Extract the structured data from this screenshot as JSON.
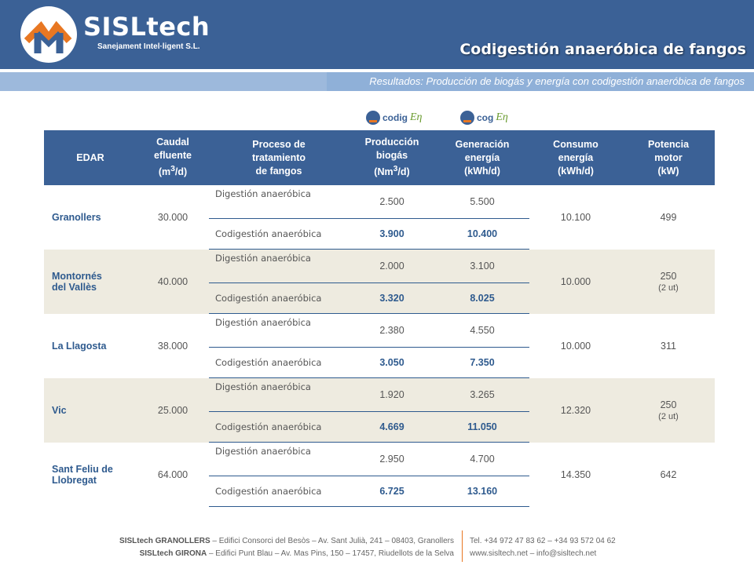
{
  "header": {
    "brand": "SISLtech",
    "brand_sub": "Sanejament Intel·ligent S.L.",
    "title": "Codigestión anaeróbica de fangos",
    "subtitle": "Resultados: Producción de biogás y energía con codigestión anaeróbica de fangos",
    "colors": {
      "primary": "#3b6196",
      "accent": "#e87722",
      "light": "#8fb0d8",
      "shade": "#eeebe0"
    }
  },
  "logos": {
    "codigen": {
      "text": "codig",
      "suffix": "Eη"
    },
    "cogen": {
      "text": "cog",
      "suffix": "Eη"
    }
  },
  "table": {
    "headers": {
      "edar": "EDAR",
      "caudal_1": "Caudal",
      "caudal_2": "efluente",
      "caudal_3": "(m",
      "proceso_1": "Proceso de",
      "proceso_2": "tratamiento",
      "proceso_3": "de fangos",
      "prod_1": "Producción",
      "prod_2": "biogás",
      "prod_3": "(Nm",
      "gen_1": "Generación",
      "gen_2": "energía",
      "gen_3": "(kWh/d)",
      "cons_1": "Consumo",
      "cons_2": "energía",
      "cons_3": "(kWh/d)",
      "pot_1": "Potencia",
      "pot_2": "motor",
      "pot_3": "(kW)"
    },
    "process_labels": {
      "digestion": "Digestión anaeróbica",
      "codigestion": "Codigestión anaeróbica"
    },
    "rows": [
      {
        "site_1": "Granollers",
        "site_2": "",
        "caudal": "30.000",
        "dig_biogas": "2.500",
        "dig_energy": "5.500",
        "codig_biogas": "3.900",
        "codig_energy": "10.400",
        "consumo": "10.100",
        "potencia": "499",
        "potencia_note": ""
      },
      {
        "site_1": "Montornés",
        "site_2": "del Vallès",
        "caudal": "40.000",
        "dig_biogas": "2.000",
        "dig_energy": "3.100",
        "codig_biogas": "3.320",
        "codig_energy": "8.025",
        "consumo": "10.000",
        "potencia": "250",
        "potencia_note": "(2 ut)"
      },
      {
        "site_1": "La Llagosta",
        "site_2": "",
        "caudal": "38.000",
        "dig_biogas": "2.380",
        "dig_energy": "4.550",
        "codig_biogas": "3.050",
        "codig_energy": "7.350",
        "consumo": "10.000",
        "potencia": "311",
        "potencia_note": ""
      },
      {
        "site_1": "Vic",
        "site_2": "",
        "caudal": "25.000",
        "dig_biogas": "1.920",
        "dig_energy": "3.265",
        "codig_biogas": "4.669",
        "codig_energy": "11.050",
        "consumo": "12.320",
        "potencia": "250",
        "potencia_note": "(2 ut)"
      },
      {
        "site_1": "Sant Feliu de",
        "site_2": "Llobregat",
        "caudal": "64.000",
        "dig_biogas": "2.950",
        "dig_energy": "4.700",
        "codig_biogas": "6.725",
        "codig_energy": "13.160",
        "consumo": "14.350",
        "potencia": "642",
        "potencia_note": ""
      }
    ]
  },
  "footer": {
    "line1_bold": "SISLtech GRANOLLERS",
    "line1": " – Edifici Consorci del Besòs – Av. Sant Julià, 241 – 08403, Granollers",
    "line2_bold": "SISLtech GIRONA",
    "line2": " – Edifici Punt Blau – Av. Mas Pins, 150 – 17457, Riudellots de la Selva",
    "contact1": "Tel. +34 972 47 83 62 – +34 93 572 04 62",
    "contact2": "www.sisltech.net – info@sisltech.net"
  }
}
